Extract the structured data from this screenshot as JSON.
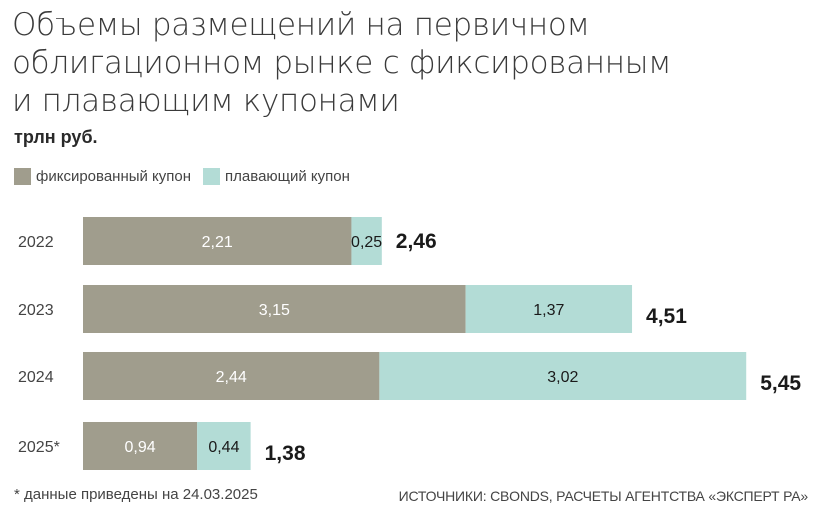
{
  "title_lines": [
    "Объемы размещений на первичном",
    "облигационном рынке с фиксированным",
    "и плавающим купонами"
  ],
  "unit": "трлн руб.",
  "colors": {
    "fixed": "#a09d8d",
    "floating": "#b3dcd6",
    "fixed_text": "#ffffff",
    "floating_text": "#1a1a1a"
  },
  "footnote": "* данные приведены на 24.03.2025",
  "source": "ИСТОЧНИКИ: CBONDS, РАСЧЕТЫ АГЕНТСТВА «ЭКСПЕРТ РА»",
  "chart_data": {
    "type": "bar",
    "orientation": "horizontal",
    "stacked": true,
    "categories": [
      "2022",
      "2023",
      "2024",
      "2025*"
    ],
    "series": [
      {
        "name": "фиксированный купон",
        "values": [
          2.21,
          3.15,
          2.44,
          0.94
        ],
        "labels": [
          "2,21",
          "3,15",
          "2,44",
          "0,94"
        ]
      },
      {
        "name": "плавающий купон",
        "values": [
          0.25,
          1.37,
          3.02,
          0.44
        ],
        "labels": [
          "0,25",
          "1,37",
          "3,02",
          "0,44"
        ]
      }
    ],
    "totals": [
      2.46,
      4.51,
      5.45,
      1.38
    ],
    "total_labels": [
      "2,46",
      "4,51",
      "5,45",
      "1,38"
    ],
    "xlim": [
      0,
      5.45
    ],
    "grid": false,
    "legend": "top-left"
  }
}
